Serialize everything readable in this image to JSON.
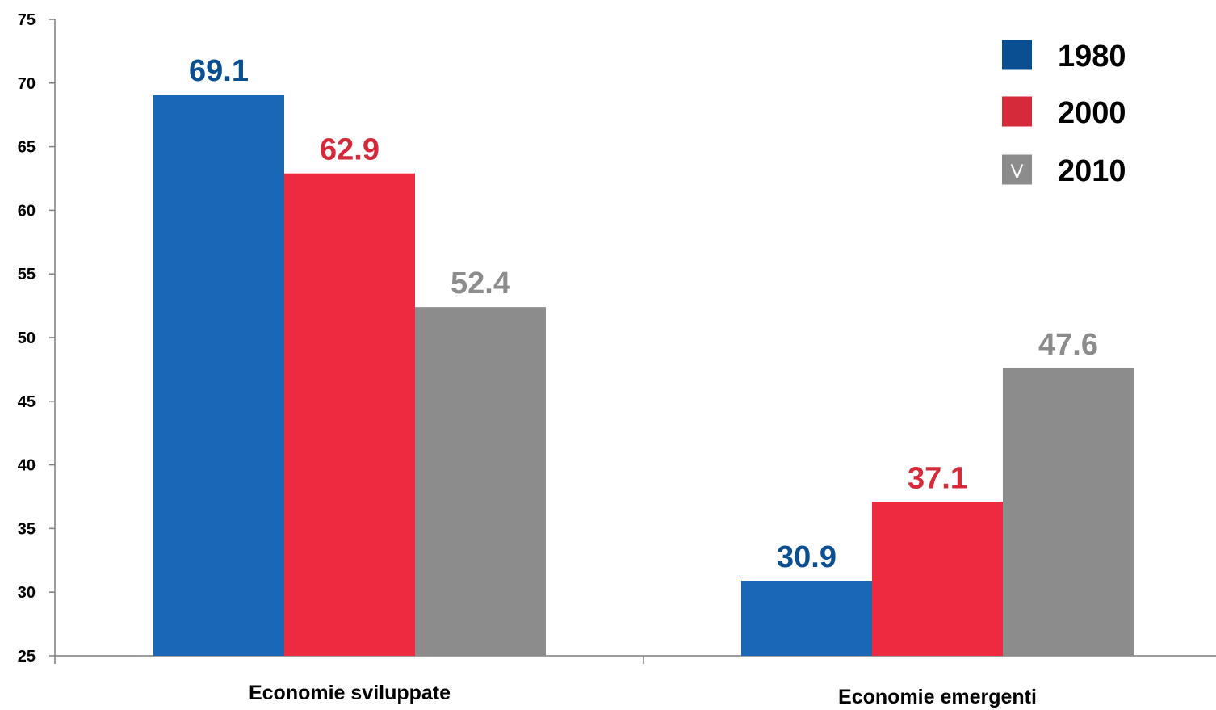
{
  "chart_data": {
    "type": "bar",
    "categories": [
      "Economie sviluppate",
      "Economie emergenti"
    ],
    "series": [
      {
        "name": "1980",
        "values": [
          69.1,
          30.9
        ],
        "color": "#1a67b8",
        "label_color": "#0b4f93"
      },
      {
        "name": "2000",
        "values": [
          62.9,
          37.1
        ],
        "color": "#ee2a40",
        "label_color": "#d42a3a"
      },
      {
        "name": "2010",
        "values": [
          52.4,
          47.6
        ],
        "color": "#8c8c8c",
        "label_color": "#8c8c8c"
      }
    ],
    "data_labels": [
      [
        "69.1",
        "30.9"
      ],
      [
        "62.9",
        "37.1"
      ],
      [
        "52.4",
        "47.6"
      ]
    ],
    "yticks": [
      25,
      30,
      35,
      40,
      45,
      50,
      55,
      60,
      65,
      70,
      75
    ],
    "ylim": [
      25,
      75
    ],
    "title": "",
    "xlabel": "",
    "ylabel": "",
    "grid": false,
    "legend": {
      "placement": "top-right",
      "entries": [
        {
          "label": "1980",
          "swatch_color": "#0b4f93",
          "swatch_glyph": ""
        },
        {
          "label": "2000",
          "swatch_color": "#d42a3a",
          "swatch_glyph": ""
        },
        {
          "label": "2010",
          "swatch_color": "#8c8c8c",
          "swatch_glyph": "V"
        }
      ]
    }
  }
}
